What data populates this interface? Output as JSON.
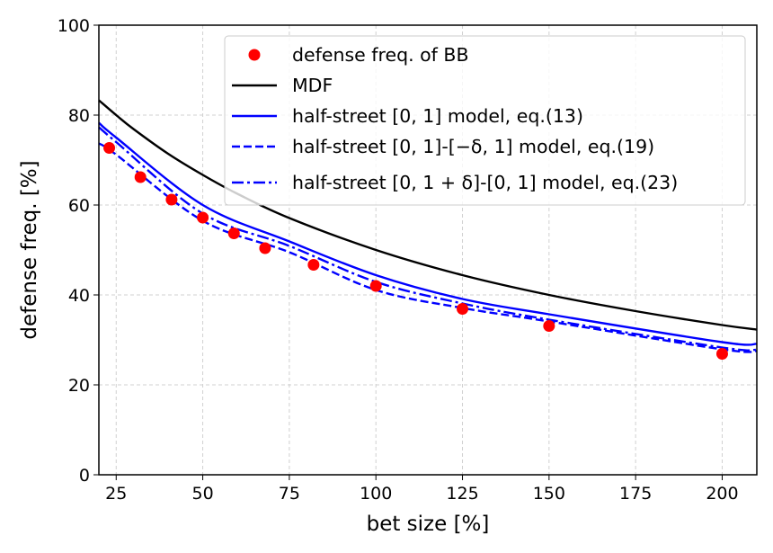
{
  "chart_data": {
    "type": "line",
    "title": "",
    "xlabel": "bet size [%]",
    "ylabel": "defense freq. [%]",
    "xlim": [
      20,
      210
    ],
    "ylim": [
      0,
      100
    ],
    "xticks": [
      25,
      50,
      75,
      100,
      125,
      150,
      175,
      200
    ],
    "yticks": [
      0,
      20,
      40,
      60,
      80,
      100
    ],
    "grid": true,
    "legend_position": "top-right",
    "series": [
      {
        "name": "defense freq. of BB",
        "kind": "scatter",
        "color": "#ff0000",
        "x": [
          23,
          32,
          41,
          50,
          59,
          68,
          82,
          100,
          125,
          150,
          200
        ],
        "y": [
          72.7,
          66.2,
          61.2,
          57.2,
          53.7,
          50.4,
          46.7,
          42.0,
          36.9,
          33.1,
          26.9
        ]
      },
      {
        "name": "MDF",
        "kind": "solid",
        "color": "#000000",
        "x": [
          20,
          25,
          30,
          40,
          50,
          60,
          75,
          100,
          125,
          150,
          175,
          200,
          210
        ],
        "y": [
          83.3,
          80.0,
          76.9,
          71.4,
          66.7,
          62.5,
          57.1,
          50.0,
          44.4,
          40.0,
          36.4,
          33.3,
          32.3
        ]
      },
      {
        "name": "half-street [0, 1] model, eq.(13)",
        "kind": "solid",
        "color": "#0000ff",
        "x": [
          20,
          25,
          50,
          75,
          100,
          125,
          150,
          200,
          210
        ],
        "y": [
          78.3,
          75.0,
          60.0,
          51.9,
          44.4,
          39.1,
          35.7,
          29.5,
          29.1
        ]
      },
      {
        "name": "half-street [0, 1]-[−δ, 1] model, eq.(19)",
        "kind": "dashed",
        "color": "#0000ff",
        "x": [
          20,
          25,
          50,
          75,
          100,
          125,
          150,
          200,
          210
        ],
        "y": [
          73.7,
          71.2,
          56.5,
          49.5,
          41.1,
          37.1,
          34.1,
          27.9,
          27.5
        ]
      },
      {
        "name": "half-street [0, 1 + δ]-[0, 1] model, eq.(23)",
        "kind": "dashdot",
        "color": "#0000ff",
        "x": [
          20,
          25,
          50,
          75,
          100,
          125,
          150,
          200,
          210
        ],
        "y": [
          77.3,
          74.0,
          58.1,
          50.9,
          42.9,
          38.1,
          34.5,
          28.3,
          27.8
        ]
      }
    ]
  }
}
